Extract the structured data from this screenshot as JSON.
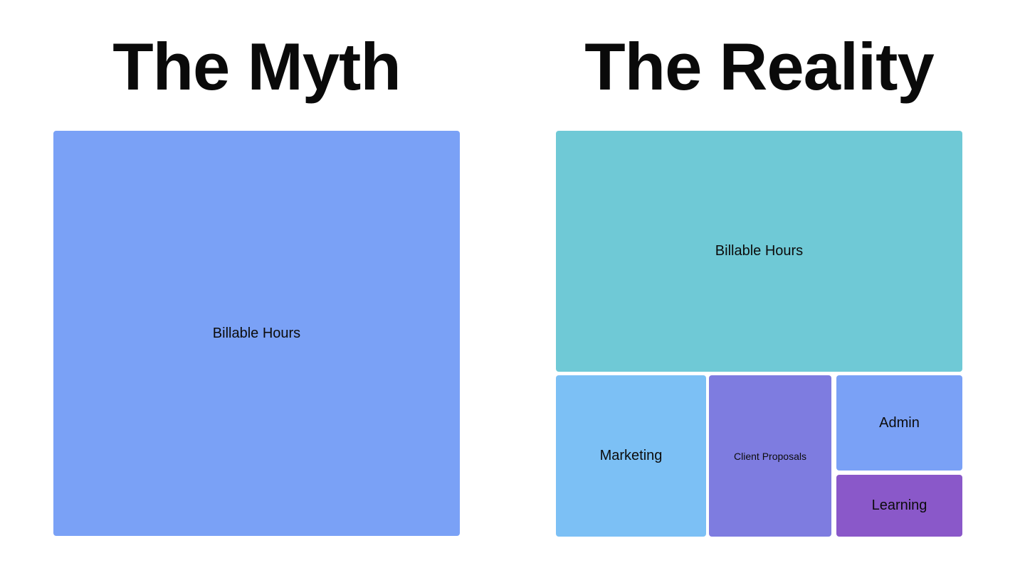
{
  "canvas": {
    "background": "#ffffff",
    "title_color": "#0a0a0a",
    "label_color": "#0c0c0c"
  },
  "chart_data": [
    {
      "type": "treemap",
      "title": "The Myth",
      "items": [
        {
          "label": "Billable Hours",
          "value_pct": 100,
          "color": "#7AA1F6"
        }
      ],
      "layout_hint": "single full-bleed square cell"
    },
    {
      "type": "treemap",
      "title": "The Reality",
      "items": [
        {
          "label": "Billable Hours",
          "value_pct": 60,
          "color": "#6FC9D6"
        },
        {
          "label": "Marketing",
          "value_pct": 15,
          "color": "#7CC0F5"
        },
        {
          "label": "Client Proposals",
          "value_pct": 12,
          "color": "#7E7CE0"
        },
        {
          "label": "Admin",
          "value_pct": 8,
          "color": "#7AA1F6"
        },
        {
          "label": "Learning",
          "value_pct": 5,
          "color": "#8A58C9"
        }
      ],
      "layout_hint": "Billable Hours spans full width on top (~60% of area); bottom row left-to-right: Marketing, Client Proposals, then a right column with Admin above Learning; thin white gaps between cells"
    }
  ]
}
